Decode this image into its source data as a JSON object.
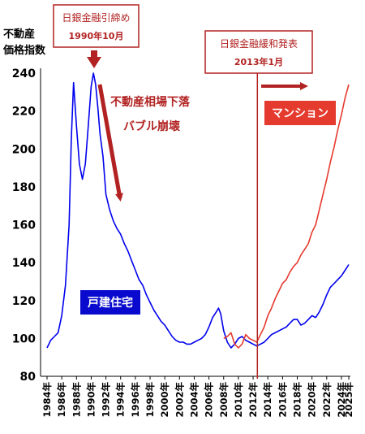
{
  "chart_data": {
    "type": "line",
    "ylabel_lines": [
      "不動産",
      "価格指数"
    ],
    "ylim": [
      80,
      240
    ],
    "yticks": [
      80,
      100,
      120,
      140,
      160,
      180,
      200,
      220,
      240
    ],
    "xlim": [
      1984,
      2025
    ],
    "xticks": [
      "1984年",
      "1986年",
      "1988年",
      "1990年",
      "1992年",
      "1994年",
      "1996年",
      "1998年",
      "2000年",
      "2002年",
      "2004年",
      "2006年",
      "2008年",
      "2010年",
      "2012年",
      "2014年",
      "2016年",
      "2018年",
      "2020年",
      "2022年",
      "2024年",
      "2025年"
    ],
    "xtick_years": [
      1984,
      1986,
      1988,
      1990,
      1992,
      1994,
      1996,
      1998,
      2000,
      2002,
      2004,
      2006,
      2008,
      2010,
      2012,
      2014,
      2016,
      2018,
      2020,
      2022,
      2024,
      2025
    ],
    "grid": false,
    "series": [
      {
        "name": "戸建住宅",
        "color": "#0000ee",
        "x": [
          1984.0,
          1984.5,
          1985.0,
          1985.5,
          1986.0,
          1986.5,
          1987.0,
          1987.3,
          1987.6,
          1988.0,
          1988.4,
          1988.8,
          1989.2,
          1989.6,
          1990.0,
          1990.3,
          1990.6,
          1990.9,
          1991.2,
          1991.6,
          1992.0,
          1992.5,
          1993.0,
          1993.5,
          1994.0,
          1994.5,
          1995.0,
          1995.5,
          1996.0,
          1996.5,
          1997.0,
          1997.5,
          1998.0,
          1998.5,
          1999.0,
          1999.5,
          2000.0,
          2000.5,
          2001.0,
          2001.5,
          2002.0,
          2002.5,
          2003.0,
          2003.5,
          2004.0,
          2004.5,
          2005.0,
          2005.5,
          2006.0,
          2006.5,
          2007.0,
          2007.3,
          2007.6,
          2008.0,
          2008.5,
          2009.0,
          2009.5,
          2010.0,
          2010.5,
          2011.0,
          2011.5,
          2012.0,
          2012.5,
          2013.0,
          2013.5,
          2014.0,
          2014.5,
          2015.0,
          2015.5,
          2016.0,
          2016.5,
          2017.0,
          2017.5,
          2018.0,
          2018.5,
          2019.0,
          2019.5,
          2020.0,
          2020.5,
          2021.0,
          2021.5,
          2022.0,
          2022.5,
          2023.0,
          2023.5,
          2024.0,
          2024.5,
          2025.0
        ],
        "values": [
          95,
          99,
          101,
          103,
          112,
          128,
          160,
          205,
          235,
          212,
          192,
          184,
          192,
          212,
          233,
          240,
          234,
          222,
          208,
          196,
          176,
          168,
          162,
          158,
          155,
          150,
          146,
          141,
          136,
          131,
          128,
          123,
          119,
          115,
          112,
          109,
          107,
          104,
          101,
          99,
          98,
          98,
          97,
          97,
          98,
          99,
          100,
          102,
          106,
          111,
          114,
          116,
          113,
          104,
          98,
          95,
          97,
          100,
          101,
          99,
          98,
          97,
          96,
          97,
          98,
          100,
          102,
          103,
          104,
          105,
          106,
          108,
          110,
          110,
          107,
          108,
          110,
          112,
          111,
          114,
          118,
          123,
          127,
          129,
          131,
          133,
          136,
          139
        ]
      },
      {
        "name": "マンション",
        "color": "#e53a2e",
        "x": [
          2008.0,
          2008.5,
          2009.0,
          2009.5,
          2010.0,
          2010.5,
          2011.0,
          2011.5,
          2012.0,
          2012.5,
          2013.0,
          2013.5,
          2014.0,
          2014.5,
          2015.0,
          2015.5,
          2016.0,
          2016.5,
          2017.0,
          2017.5,
          2018.0,
          2018.5,
          2019.0,
          2019.5,
          2020.0,
          2020.5,
          2021.0,
          2021.5,
          2022.0,
          2022.5,
          2023.0,
          2023.5,
          2024.0,
          2024.5,
          2025.0
        ],
        "values": [
          100,
          101,
          103,
          97,
          95,
          97,
          102,
          100,
          99,
          98,
          102,
          106,
          112,
          116,
          121,
          125,
          129,
          131,
          135,
          138,
          140,
          144,
          147,
          150,
          156,
          160,
          168,
          176,
          184,
          193,
          201,
          210,
          218,
          227,
          234
        ]
      }
    ],
    "annotations": {
      "bubble_box": {
        "line1": "日銀金融引締め",
        "line2": "1990年10月"
      },
      "easing_box": {
        "line1": "日銀金融緩和発表",
        "line2": "2013年1月"
      },
      "crash_text": {
        "line1": "不動産相場下落",
        "line2": "バブル崩壊"
      },
      "condo_label": "マンション",
      "house_label": "戸建住宅",
      "easing_year": 2012.58
    },
    "colors": {
      "annotation": "#b22222",
      "house": "#0000ee",
      "condo": "#e53a2e",
      "axis": "#000000"
    }
  }
}
